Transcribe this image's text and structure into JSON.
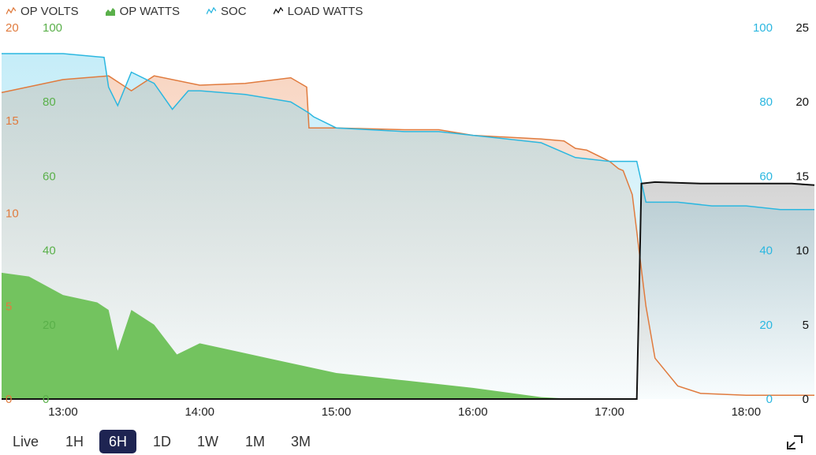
{
  "legend": [
    {
      "label": "OP VOLTS",
      "color": "#e07b3e",
      "icon": "line-series-icon"
    },
    {
      "label": "OP WATTS",
      "color": "#5ab04a",
      "icon": "bar-series-icon"
    },
    {
      "label": "SOC",
      "color": "#2bb7e0",
      "icon": "line-series-icon"
    },
    {
      "label": "LOAD WATTS",
      "color": "#111111",
      "icon": "line-series-icon"
    }
  ],
  "axes": {
    "volts_ticks": [
      "0",
      "5",
      "10",
      "15",
      "20"
    ],
    "watts_ticks": [
      "0",
      "20",
      "40",
      "60",
      "80",
      "100"
    ],
    "soc_ticks": [
      "0",
      "20",
      "40",
      "60",
      "80",
      "100"
    ],
    "load_ticks": [
      "0",
      "5",
      "10",
      "15",
      "20",
      "25"
    ],
    "x_ticks": [
      "13:00",
      "14:00",
      "15:00",
      "16:00",
      "17:00",
      "18:00"
    ]
  },
  "range_buttons": [
    "Live",
    "1H",
    "6H",
    "1D",
    "1W",
    "1M",
    "3M"
  ],
  "active_range": "6H",
  "chart_data": {
    "type": "area",
    "x_unit": "time (hours)",
    "x_range": [
      "12:33",
      "18:30"
    ],
    "y_axes": {
      "op_volts": [
        0,
        20
      ],
      "op_watts": [
        0,
        100
      ],
      "soc": [
        0,
        100
      ],
      "load_watts": [
        0,
        25
      ]
    },
    "grid": false,
    "legend_position": "top-left",
    "series": [
      {
        "name": "OP VOLTS",
        "axis": "op_volts",
        "color": "#e07b3e",
        "x": [
          "12:33",
          "13:00",
          "13:20",
          "13:30",
          "13:40",
          "14:00",
          "14:20",
          "14:40",
          "14:47",
          "14:48",
          "15:00",
          "15:30",
          "15:45",
          "16:00",
          "16:30",
          "16:40",
          "16:45",
          "16:50",
          "17:00",
          "17:04",
          "17:06",
          "17:10",
          "17:13",
          "17:16",
          "17:20",
          "17:30",
          "17:40",
          "18:00",
          "18:30"
        ],
        "values": [
          16.5,
          17.2,
          17.4,
          16.6,
          17.4,
          16.9,
          17.0,
          17.3,
          16.8,
          14.6,
          14.6,
          14.5,
          14.5,
          14.2,
          14.0,
          13.9,
          13.5,
          13.4,
          12.8,
          12.4,
          12.3,
          11.0,
          8.0,
          5.0,
          2.2,
          0.7,
          0.3,
          0.2,
          0.2
        ]
      },
      {
        "name": "OP WATTS",
        "axis": "op_watts",
        "color": "#5ab04a",
        "x": [
          "12:33",
          "12:45",
          "13:00",
          "13:15",
          "13:20",
          "13:24",
          "13:30",
          "13:40",
          "13:50",
          "14:00",
          "14:15",
          "14:30",
          "14:45",
          "15:00",
          "15:30",
          "16:00",
          "16:30",
          "16:45",
          "17:10",
          "18:30"
        ],
        "values": [
          34,
          33,
          28,
          26,
          24,
          13,
          24,
          20,
          12,
          15,
          13,
          11,
          9,
          7,
          5,
          3,
          0.5,
          0,
          0,
          0
        ]
      },
      {
        "name": "SOC",
        "axis": "soc",
        "color": "#2bb7e0",
        "x": [
          "12:33",
          "12:50",
          "13:00",
          "13:18",
          "13:20",
          "13:24",
          "13:30",
          "13:40",
          "13:48",
          "13:55",
          "14:00",
          "14:20",
          "14:40",
          "14:48",
          "14:50",
          "15:00",
          "15:30",
          "15:45",
          "16:00",
          "16:30",
          "16:45",
          "17:00",
          "17:05",
          "17:08",
          "17:12",
          "17:16",
          "17:30",
          "17:45",
          "18:00",
          "18:15",
          "18:30"
        ],
        "values": [
          93,
          93,
          93,
          92,
          84,
          79,
          88,
          85,
          78,
          83,
          83,
          82,
          80,
          77,
          76,
          73,
          72,
          72,
          71,
          69,
          65,
          64,
          64,
          64,
          64,
          53,
          53,
          52,
          52,
          51,
          51
        ]
      },
      {
        "name": "LOAD WATTS",
        "axis": "load_watts",
        "color": "#111111",
        "x": [
          "12:33",
          "17:10",
          "17:12",
          "17:13",
          "17:14",
          "17:20",
          "17:40",
          "18:00",
          "18:20",
          "18:30"
        ],
        "values": [
          0,
          0,
          0,
          7,
          14.5,
          14.6,
          14.5,
          14.5,
          14.5,
          14.4
        ]
      }
    ]
  }
}
